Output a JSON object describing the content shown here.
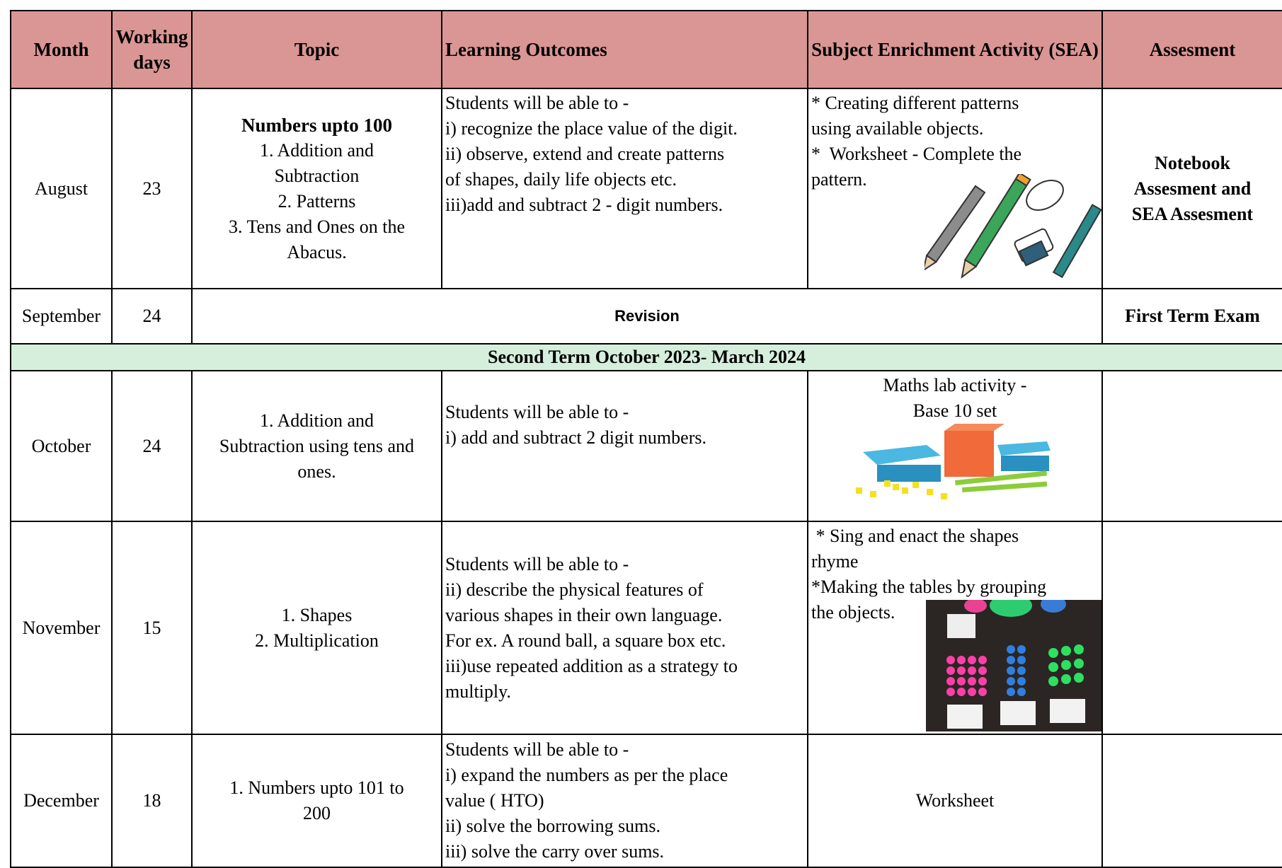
{
  "table": {
    "header": [
      "Month",
      "Working days",
      "Topic",
      "Learning Outcomes",
      "Subject Enrichment Activity (SEA)",
      "Assesment"
    ],
    "rows": [
      {
        "month": "August",
        "days": 23,
        "topic": [
          "Numbers upto 100",
          "1. Addition and",
          "Subtraction",
          "2. Patterns",
          "3. Tens and Ones on the",
          "Abacus."
        ],
        "outcomes": [
          "Students will be able to -",
          "i) recognize the place value of the digit.",
          "ii) observe, extend and create patterns",
          "of shapes, daily life objects etc.",
          "iii)add and subtract 2 - digit numbers."
        ],
        "sea": [
          "* Creating different patterns",
          "using available objects.",
          "*  Worksheet - Complete the",
          "pattern."
        ],
        "assessment": [
          "Notebook",
          "Assesment and",
          "SEA Assesment"
        ]
      },
      {
        "month": "September",
        "days": 24,
        "span": "Revision",
        "assessment": [
          "First Term Exam"
        ]
      },
      {
        "banner": "Second Term October 2023- March 2024"
      },
      {
        "month": "October",
        "days": 24,
        "topic": [
          "1. Addition and",
          "Subtraction using tens and",
          "ones."
        ],
        "outcomes": [
          "Students will be able to -",
          "i) add and subtract 2 digit numbers."
        ],
        "sea": [
          "Maths lab activity -",
          "Base 10 set"
        ]
      },
      {
        "month": "November",
        "days": 15,
        "topic": [
          "1. Shapes",
          "2. Multiplication"
        ],
        "outcomes": [
          "Students will be able to -",
          "ii) describe the physical features of",
          "various shapes in their own language.",
          "For ex. A round ball, a square box etc.",
          "iii)use repeated addition as a strategy to",
          "multiply."
        ],
        "sea": [
          " * Sing and enact the shapes",
          "rhyme",
          "*Making the tables by grouping",
          "the objects."
        ]
      },
      {
        "month": "December",
        "days": 18,
        "topic": [
          "1. Numbers upto 101 to",
          "200"
        ],
        "outcomes": [
          "Students will be able to -",
          "i) expand the numbers as per the place",
          "value ( HTO)",
          "ii) solve the borrowing sums.",
          "iii) solve the carry over sums."
        ],
        "sea": [
          "Worksheet"
        ]
      }
    ]
  }
}
